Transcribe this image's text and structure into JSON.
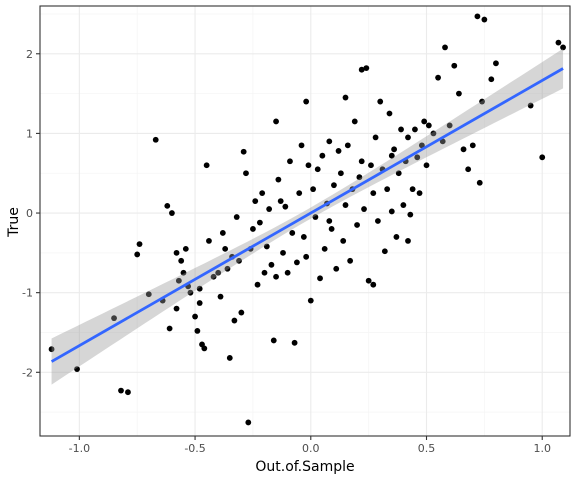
{
  "chart_data": {
    "type": "scatter",
    "xlabel": "Out.of.Sample",
    "ylabel": "True",
    "xlim": [
      -1.17,
      1.12
    ],
    "ylim": [
      -2.8,
      2.6
    ],
    "x_ticks": [
      -1.0,
      -0.5,
      0.0,
      0.5,
      1.0
    ],
    "x_tick_labels": [
      "-1.0",
      "-0.5",
      "0.0",
      "0.5",
      "1.0"
    ],
    "y_ticks": [
      -2,
      -1,
      0,
      1,
      2
    ],
    "y_tick_labels": [
      "-2",
      "-1",
      "0",
      "1",
      "2"
    ],
    "grid": true,
    "colors": {
      "points": "#000000",
      "fit_line": "#3366ff",
      "confidence_band": "#999999",
      "panel_border": "#333333",
      "grid_major": "#ebebeb",
      "grid_minor": "#f5f5f5"
    },
    "fit": {
      "method": "linear",
      "x_range": [
        -1.12,
        1.09
      ],
      "intercept": 0.0,
      "slope": 1.665,
      "band_halfwidth_at_ends": [
        0.29,
        0.25
      ],
      "band_halfwidth_at_center": 0.07
    },
    "points": [
      [
        -1.12,
        -1.71
      ],
      [
        -1.01,
        -1.96
      ],
      [
        -0.85,
        -1.32
      ],
      [
        -0.82,
        -2.23
      ],
      [
        -0.79,
        -2.25
      ],
      [
        -0.75,
        -0.52
      ],
      [
        -0.74,
        -0.39
      ],
      [
        -0.7,
        -1.02
      ],
      [
        -0.67,
        0.92
      ],
      [
        -0.64,
        -1.1
      ],
      [
        -0.62,
        0.09
      ],
      [
        -0.61,
        -1.45
      ],
      [
        -0.6,
        0.0
      ],
      [
        -0.58,
        -0.5
      ],
      [
        -0.57,
        -0.85
      ],
      [
        -0.56,
        -0.6
      ],
      [
        -0.55,
        -0.75
      ],
      [
        -0.54,
        -0.45
      ],
      [
        -0.53,
        -0.92
      ],
      [
        -0.52,
        -1.0
      ],
      [
        -0.5,
        -1.3
      ],
      [
        -0.49,
        -1.48
      ],
      [
        -0.48,
        -1.13
      ],
      [
        -0.47,
        -1.65
      ],
      [
        -0.46,
        -1.7
      ],
      [
        -0.45,
        0.6
      ],
      [
        -0.44,
        -0.35
      ],
      [
        -0.42,
        -0.8
      ],
      [
        -0.4,
        -0.75
      ],
      [
        -0.39,
        -1.05
      ],
      [
        -0.38,
        -0.25
      ],
      [
        -0.37,
        -0.45
      ],
      [
        -0.36,
        -0.7
      ],
      [
        -0.35,
        -1.82
      ],
      [
        -0.34,
        -0.55
      ],
      [
        -0.33,
        -1.35
      ],
      [
        -0.32,
        -0.05
      ],
      [
        -0.31,
        -0.6
      ],
      [
        -0.3,
        -1.25
      ],
      [
        -0.29,
        0.77
      ],
      [
        -0.28,
        0.5
      ],
      [
        -0.27,
        -2.63
      ],
      [
        -0.26,
        -0.45
      ],
      [
        -0.25,
        -0.2
      ],
      [
        -0.24,
        0.15
      ],
      [
        -0.23,
        -0.9
      ],
      [
        -0.22,
        -0.12
      ],
      [
        -0.21,
        0.25
      ],
      [
        -0.2,
        -0.75
      ],
      [
        -0.19,
        -0.42
      ],
      [
        -0.18,
        0.05
      ],
      [
        -0.17,
        -0.65
      ],
      [
        -0.16,
        -1.6
      ],
      [
        -0.15,
        -0.8
      ],
      [
        -0.14,
        0.42
      ],
      [
        -0.13,
        0.15
      ],
      [
        -0.12,
        -0.5
      ],
      [
        -0.11,
        0.08
      ],
      [
        -0.1,
        -0.75
      ],
      [
        -0.09,
        0.65
      ],
      [
        -0.08,
        -0.25
      ],
      [
        -0.07,
        -1.63
      ],
      [
        -0.06,
        -0.62
      ],
      [
        -0.05,
        0.25
      ],
      [
        -0.04,
        0.85
      ],
      [
        -0.03,
        -0.3
      ],
      [
        -0.02,
        -0.55
      ],
      [
        -0.01,
        0.6
      ],
      [
        0.0,
        -1.1
      ],
      [
        0.01,
        0.3
      ],
      [
        0.02,
        -0.05
      ],
      [
        0.03,
        0.55
      ],
      [
        0.04,
        -0.82
      ],
      [
        0.05,
        0.72
      ],
      [
        0.06,
        -0.45
      ],
      [
        0.07,
        0.12
      ],
      [
        0.08,
        0.9
      ],
      [
        0.09,
        -0.2
      ],
      [
        0.1,
        0.35
      ],
      [
        0.11,
        -0.7
      ],
      [
        0.12,
        0.78
      ],
      [
        0.13,
        0.5
      ],
      [
        0.14,
        -0.35
      ],
      [
        0.15,
        0.1
      ],
      [
        0.16,
        0.85
      ],
      [
        0.17,
        -0.6
      ],
      [
        0.18,
        0.3
      ],
      [
        0.19,
        1.15
      ],
      [
        0.2,
        -0.15
      ],
      [
        0.21,
        0.45
      ],
      [
        0.22,
        0.65
      ],
      [
        0.23,
        0.05
      ],
      [
        0.24,
        1.82
      ],
      [
        0.25,
        -0.85
      ],
      [
        0.26,
        0.6
      ],
      [
        0.27,
        0.25
      ],
      [
        0.28,
        0.95
      ],
      [
        0.29,
        -0.1
      ],
      [
        0.3,
        1.4
      ],
      [
        0.31,
        0.55
      ],
      [
        0.32,
        -0.48
      ],
      [
        0.33,
        0.3
      ],
      [
        0.34,
        1.25
      ],
      [
        0.35,
        0.02
      ],
      [
        0.36,
        0.8
      ],
      [
        0.37,
        -0.3
      ],
      [
        0.38,
        0.5
      ],
      [
        0.39,
        1.05
      ],
      [
        0.4,
        0.1
      ],
      [
        0.41,
        0.65
      ],
      [
        0.42,
        0.95
      ],
      [
        0.43,
        -0.02
      ],
      [
        0.44,
        0.3
      ],
      [
        0.45,
        1.05
      ],
      [
        0.46,
        0.7
      ],
      [
        0.47,
        0.25
      ],
      [
        0.48,
        0.85
      ],
      [
        0.49,
        1.15
      ],
      [
        0.5,
        0.6
      ],
      [
        0.51,
        1.1
      ],
      [
        0.53,
        1.0
      ],
      [
        0.55,
        1.7
      ],
      [
        0.57,
        0.9
      ],
      [
        0.58,
        2.08
      ],
      [
        0.6,
        1.1
      ],
      [
        0.62,
        1.85
      ],
      [
        0.64,
        1.5
      ],
      [
        0.66,
        0.8
      ],
      [
        0.68,
        0.55
      ],
      [
        0.7,
        0.85
      ],
      [
        0.72,
        2.47
      ],
      [
        0.73,
        0.38
      ],
      [
        0.74,
        1.4
      ],
      [
        0.75,
        2.43
      ],
      [
        0.78,
        1.68
      ],
      [
        0.8,
        1.88
      ],
      [
        0.95,
        1.35
      ],
      [
        1.0,
        0.7
      ],
      [
        1.07,
        2.14
      ],
      [
        1.09,
        2.08
      ],
      [
        0.22,
        1.8
      ],
      [
        0.15,
        1.45
      ],
      [
        -0.02,
        1.4
      ],
      [
        -0.15,
        1.15
      ],
      [
        0.35,
        0.72
      ],
      [
        -0.48,
        -0.95
      ],
      [
        0.42,
        -0.35
      ],
      [
        0.27,
        -0.9
      ],
      [
        -0.58,
        -1.2
      ],
      [
        0.08,
        -0.1
      ]
    ]
  }
}
